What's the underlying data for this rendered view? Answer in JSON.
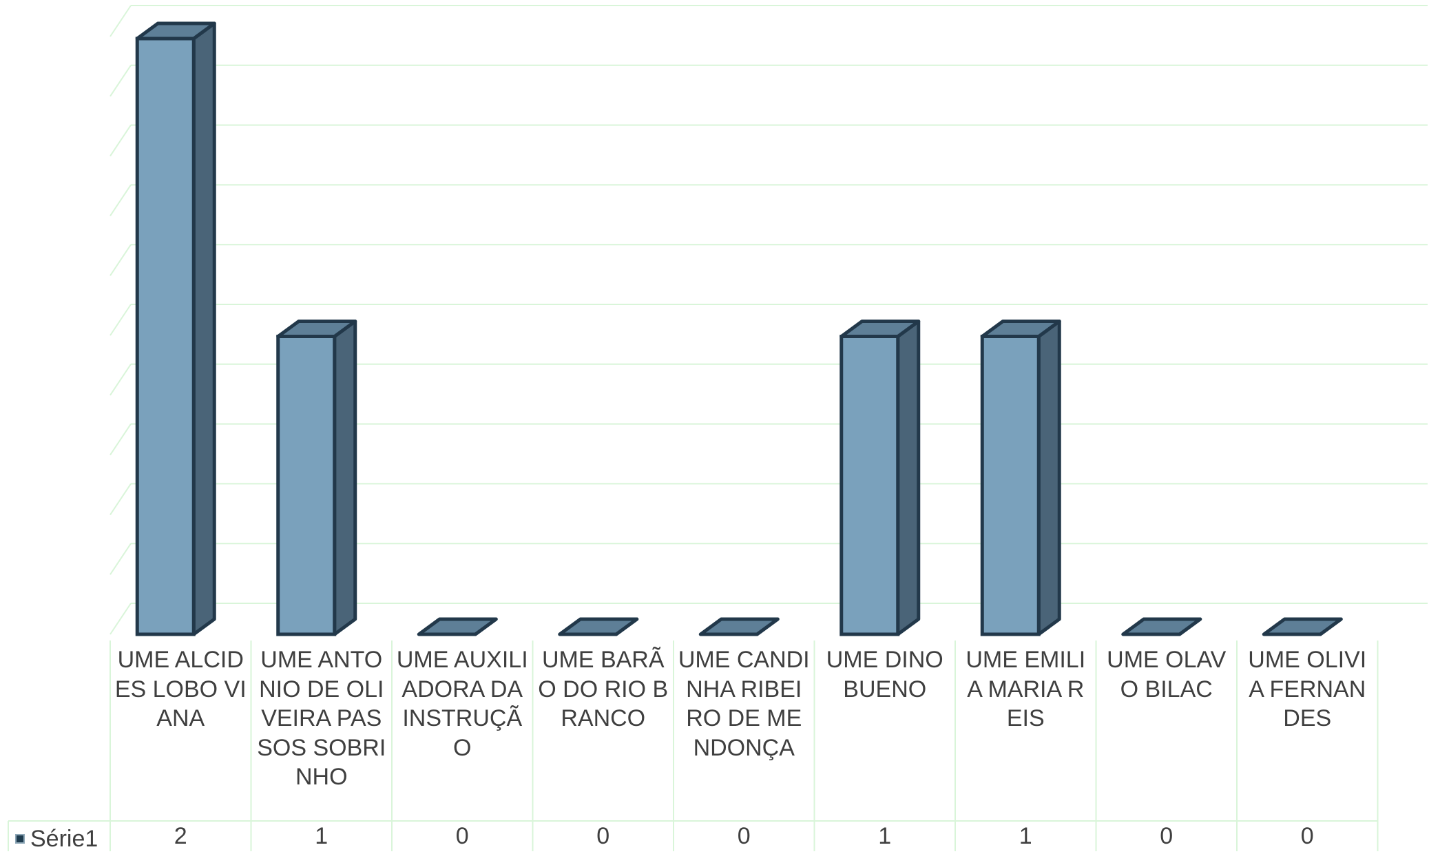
{
  "chart_data": {
    "type": "bar",
    "style": "3d-column",
    "categories": [
      "UME ALCIDES LOBO VIANA",
      "UME ANTONIO DE OLIVEIRA PASSOS SOBRINHO",
      "UME AUXILIADORA DA INSTRUÇÃO",
      "UME BARÃO DO RIO BRANCO",
      "UME CANDINHA RIBEIRO DE MENDONÇA",
      "UME DINO BUENO",
      "UME EMILIA MARIA REIS",
      "UME OLAVO BILAC",
      "UME OLIVIA FERNANDES"
    ],
    "series": [
      {
        "name": "Série1",
        "values": [
          2,
          1,
          0,
          0,
          0,
          1,
          1,
          0,
          0
        ]
      }
    ],
    "value_labels": [
      "2",
      "1",
      "0",
      "0",
      "0",
      "1",
      "1",
      "0",
      "0"
    ],
    "ylim": [
      0,
      2
    ],
    "grid": true,
    "legend": "data-table-left",
    "colors": {
      "bar_front": "#7aa1bc",
      "bar_side": "#4a6478",
      "bar_top": "#5e7f97",
      "bar_outline": "#22384a",
      "grid": "#d9f5d9",
      "text": "#3f3f3f"
    }
  }
}
